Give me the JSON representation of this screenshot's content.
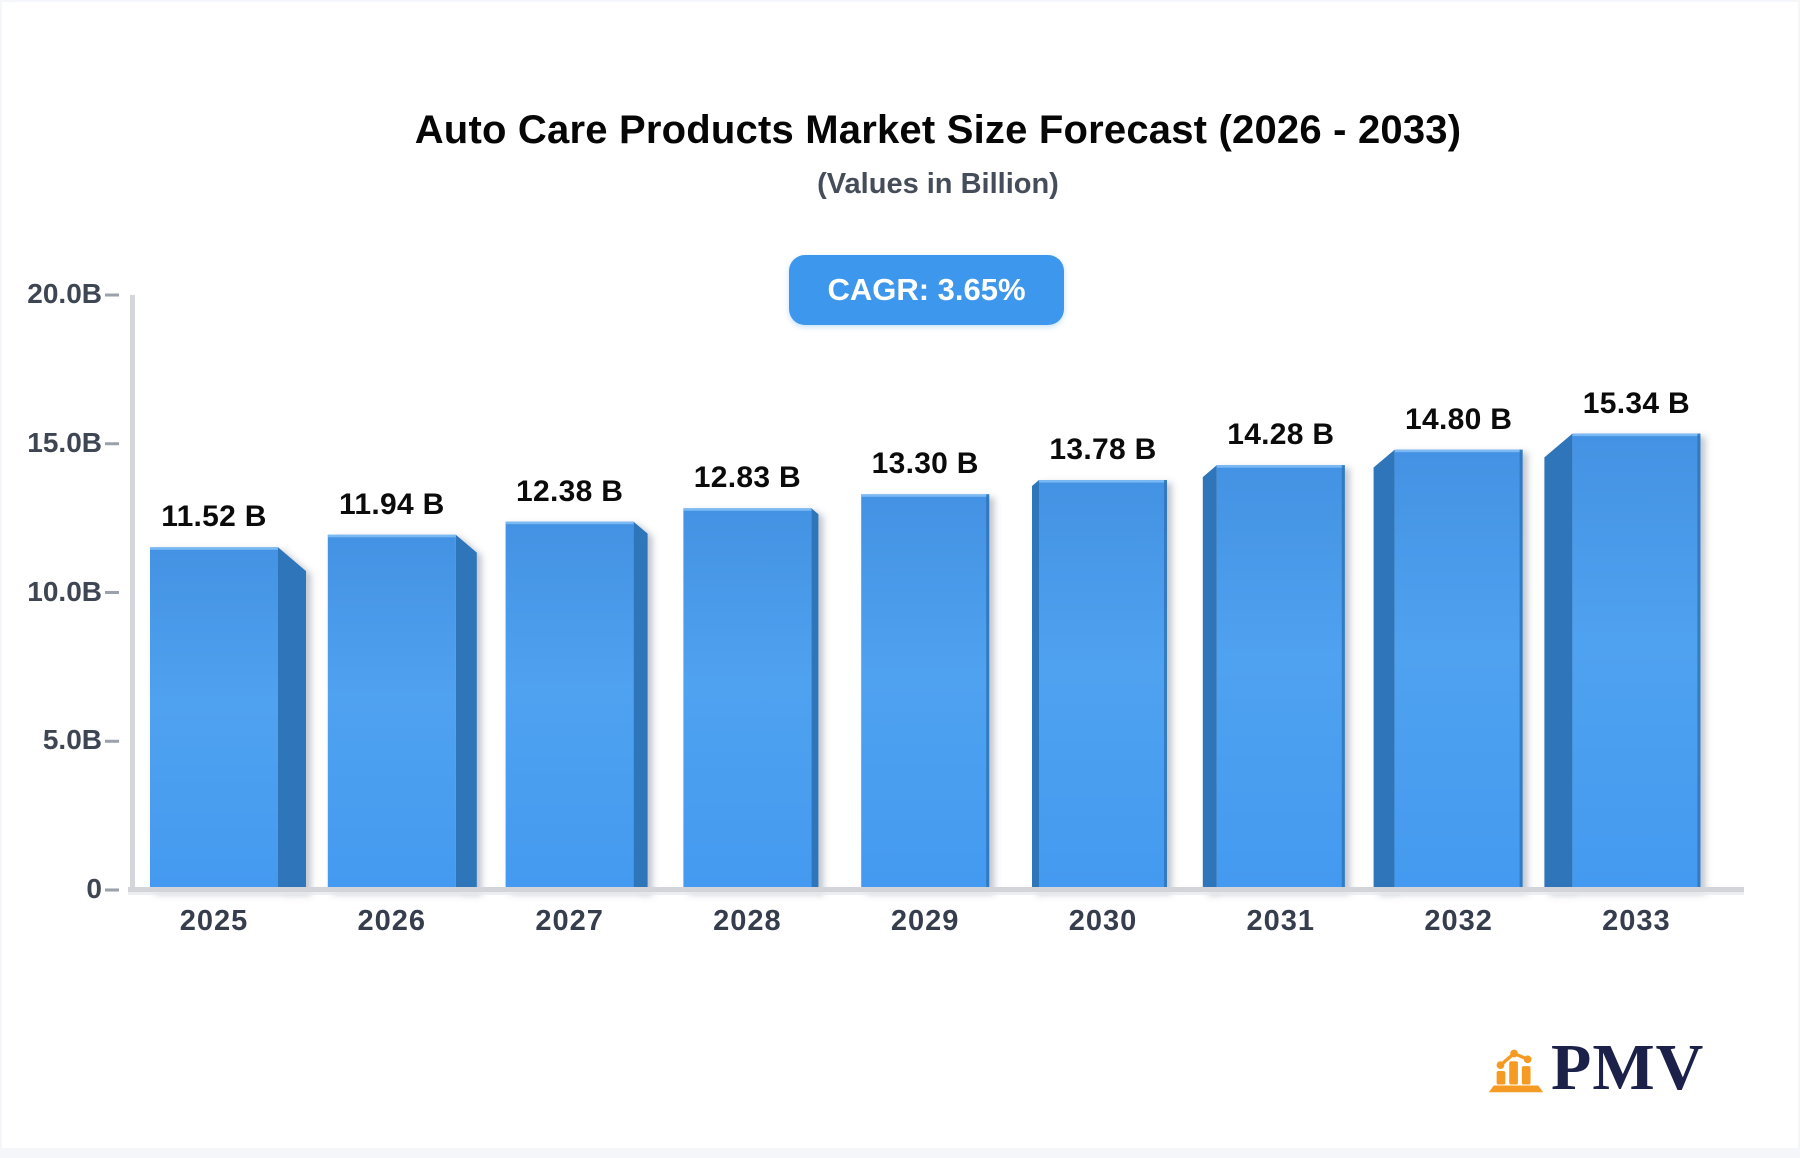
{
  "header": {
    "title": "Auto Care Products Market Size Forecast (2026 - 2033)",
    "subtitle": "(Values in Billion)"
  },
  "badge": {
    "label": "CAGR: 3.65%",
    "bg_color": "#3d97ec",
    "text_color": "#ffffff"
  },
  "chart_data": {
    "type": "bar",
    "title": "Auto Care Products Market Size Forecast (2026 - 2033)",
    "subtitle": "(Values in Billion)",
    "cagr": "3.65%",
    "unit": "Billion",
    "categories": [
      "2025",
      "2026",
      "2027",
      "2028",
      "2029",
      "2030",
      "2031",
      "2032",
      "2033"
    ],
    "values": [
      11.52,
      11.94,
      12.38,
      12.83,
      13.3,
      13.78,
      14.28,
      14.8,
      15.34
    ],
    "value_labels": [
      "11.52 B",
      "11.94 B",
      "12.38 B",
      "12.83 B",
      "13.30 B",
      "13.78 B",
      "14.28 B",
      "14.80 B",
      "15.34 B"
    ],
    "ylim": [
      0,
      20
    ],
    "yticks": [
      {
        "value": 20,
        "label": "20.0B"
      },
      {
        "value": 15,
        "label": "15.0B"
      },
      {
        "value": 10,
        "label": "10.0B"
      },
      {
        "value": 5,
        "label": "5.0B"
      },
      {
        "value": 0,
        "label": "0"
      }
    ],
    "grid": false,
    "legend": false,
    "colors": {
      "bar_face_top": "#4392e3",
      "bar_face_mid": "#50a2f0",
      "bar_face_bottom": "#439af0",
      "bar_side": "#2e74ba",
      "bar_top_highlight": "#7ab9f3",
      "axis_line": "#d4d6db",
      "tick_mark": "#9aa1ab"
    }
  },
  "logo": {
    "text": "PMV",
    "icon_color": "#f59b23",
    "text_color": "#1b2148"
  }
}
